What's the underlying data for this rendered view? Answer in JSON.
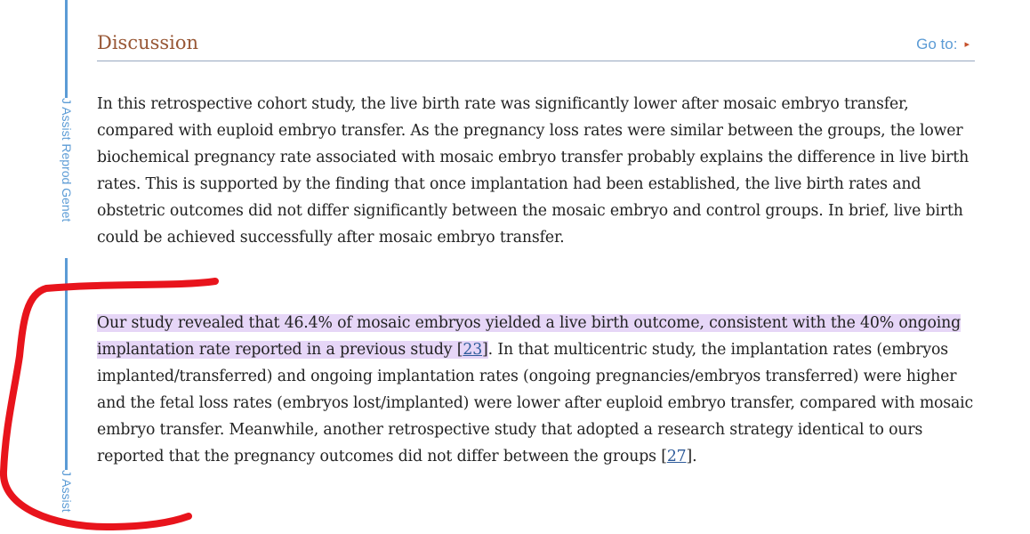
{
  "sidebar": {
    "journal_label": "J Assist Reprod Genet",
    "journal_label_truncated": "J Assist"
  },
  "section": {
    "title": "Discussion",
    "goto_label": "Go to:",
    "goto_arrow": "▸"
  },
  "paragraph1": {
    "text": "In this retrospective cohort study, the live birth rate was significantly lower after mosaic embryo transfer, compared with euploid embryo transfer. As the pregnancy loss rates were similar between the groups, the lower biochemical pregnancy rate associated with mosaic embryo transfer probably explains the difference in live birth rates. This is supported by the finding that once implantation had been established, the live birth rates and obstetric outcomes did not differ significantly between the mosaic embryo and control groups. In brief, live birth could be achieved successfully after mosaic embryo transfer."
  },
  "paragraph2": {
    "highlighted_text": "Our study revealed that 46.4% of mosaic embryos yielded a live birth outcome, consistent with the 40% ongoing implantation rate reported in a previous study [",
    "ref1": "23",
    "highlighted_close": "]",
    "text_middle": ". In that multicentric study, the implantation rates (embryos implanted/transferred) and ongoing implantation rates (ongoing pregnancies/embryos transferred) were higher and the fetal loss rates (embryos lost/implanted) were lower after euploid embryo transfer, compared with mosaic embryo transfer. Meanwhile, another retrospective study that adopted a research strategy identical to ours reported that the pregnancy outcomes did not differ between the groups [",
    "ref2": "27",
    "text_end": "]."
  },
  "colors": {
    "accent": "#5b9bd5",
    "title": "#985735",
    "highlight": "#e6d6f7",
    "annotation": "#e8141c"
  }
}
